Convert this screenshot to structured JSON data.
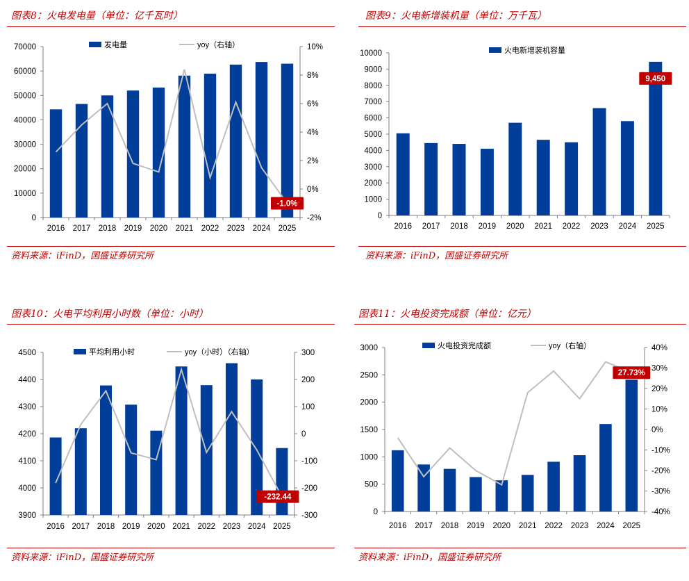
{
  "colors": {
    "bar": "#003e9a",
    "line": "#bfbfbf",
    "accent": "#c00000",
    "axis": "#7f7f7f"
  },
  "panels": [
    {
      "title": "图表8：火电发电量（单位：亿千瓦时）",
      "source": "资料来源：iFinD，国盛证券研究所",
      "chart_data": {
        "type": "bar",
        "categories": [
          "2016",
          "2017",
          "2018",
          "2019",
          "2020",
          "2021",
          "2022",
          "2023",
          "2024",
          "2025"
        ],
        "series": [
          {
            "name": "发电量",
            "axis": "left",
            "type": "bar",
            "values": [
              44300,
              46500,
              50000,
              52000,
              53200,
              58100,
              58900,
              62600,
              63700,
              63000
            ]
          },
          {
            "name": "yoy（右轴）",
            "axis": "right",
            "type": "line",
            "values": [
              2.6,
              4.5,
              6.0,
              1.8,
              1.2,
              8.4,
              0.8,
              6.1,
              1.5,
              -1.0
            ]
          }
        ],
        "yticks": [
          "0",
          "10000",
          "20000",
          "30000",
          "40000",
          "50000",
          "60000",
          "70000"
        ],
        "ylim": [
          0,
          70000
        ],
        "y2ticks": [
          "-2%",
          "0%",
          "2%",
          "4%",
          "6%",
          "8%",
          "10%"
        ],
        "y2lim": [
          -2,
          10
        ],
        "callout": {
          "text": "-1.0%",
          "series": 1,
          "index": 9
        }
      }
    },
    {
      "title": "图表9：火电新增装机量（单位：万千瓦）",
      "source": "资料来源：iFinD，国盛证券研究所",
      "chart_data": {
        "type": "bar",
        "categories": [
          "2016",
          "2017",
          "2018",
          "2019",
          "2020",
          "2021",
          "2022",
          "2023",
          "2024",
          "2025"
        ],
        "series": [
          {
            "name": "火电新增装机容量",
            "axis": "left",
            "type": "bar",
            "values": [
              5050,
              4450,
              4400,
              4100,
              5700,
              4650,
              4500,
              6600,
              5800,
              9450
            ]
          }
        ],
        "yticks": [
          "0",
          "1000",
          "2000",
          "3000",
          "4000",
          "5000",
          "6000",
          "7000",
          "8000",
          "9000",
          "10000"
        ],
        "ylim": [
          0,
          10000
        ],
        "callout": {
          "text": "9,450",
          "series": 0,
          "index": 9
        }
      }
    },
    {
      "title": "图表10：火电平均利用小时数（单位：小时）",
      "source": "资料来源：iFinD，国盛证券研究所",
      "chart_data": {
        "type": "bar",
        "categories": [
          "2016",
          "2017",
          "2018",
          "2019",
          "2020",
          "2021",
          "2022",
          "2023",
          "2024",
          "2025"
        ],
        "series": [
          {
            "name": "平均利用小时",
            "axis": "left",
            "type": "bar",
            "values": [
              4186,
              4220,
              4378,
              4307,
              4211,
              4448,
              4379,
              4460,
              4400,
              4147
            ]
          },
          {
            "name": "yoy（小时）（右轴）",
            "axis": "right",
            "type": "line",
            "values": [
              -182,
              34,
              158,
              -71,
              -96,
              237,
              -69,
              81,
              -60,
              -232.44
            ]
          }
        ],
        "yticks": [
          "3900",
          "4000",
          "4100",
          "4200",
          "4300",
          "4400",
          "4500"
        ],
        "ylim": [
          3900,
          4500
        ],
        "y2ticks": [
          "-300",
          "-200",
          "-100",
          "0",
          "100",
          "200",
          "300"
        ],
        "y2lim": [
          -300,
          300
        ],
        "callout": {
          "text": "-232.44",
          "series": 1,
          "index": 9
        }
      }
    },
    {
      "title": "图表11：火电投资完成额（单位：亿元）",
      "source": "资料来源：iFinD，国盛证券研究所",
      "chart_data": {
        "type": "bar",
        "categories": [
          "2016",
          "2017",
          "2018",
          "2019",
          "2020",
          "2021",
          "2022",
          "2023",
          "2024",
          "2025"
        ],
        "series": [
          {
            "name": "火电投资完成额",
            "axis": "left",
            "type": "bar",
            "values": [
              1120,
              860,
              780,
              630,
              570,
              670,
              910,
              1030,
              1600,
              2410
            ]
          },
          {
            "name": "yoy（右轴）",
            "axis": "right",
            "type": "line",
            "values": [
              -4,
              -23,
              -9,
              -20,
              -27,
              18,
              28.5,
              15,
              33,
              27.73
            ]
          }
        ],
        "yticks": [
          "0",
          "500",
          "1000",
          "1500",
          "2000",
          "2500",
          "3000"
        ],
        "ylim": [
          0,
          3000
        ],
        "y2ticks": [
          "-40%",
          "-30%",
          "-20%",
          "-10%",
          "0%",
          "10%",
          "20%",
          "30%",
          "40%"
        ],
        "y2lim": [
          -40,
          40
        ],
        "callout": {
          "text": "27.73%",
          "series": 1,
          "index": 9
        }
      }
    }
  ]
}
